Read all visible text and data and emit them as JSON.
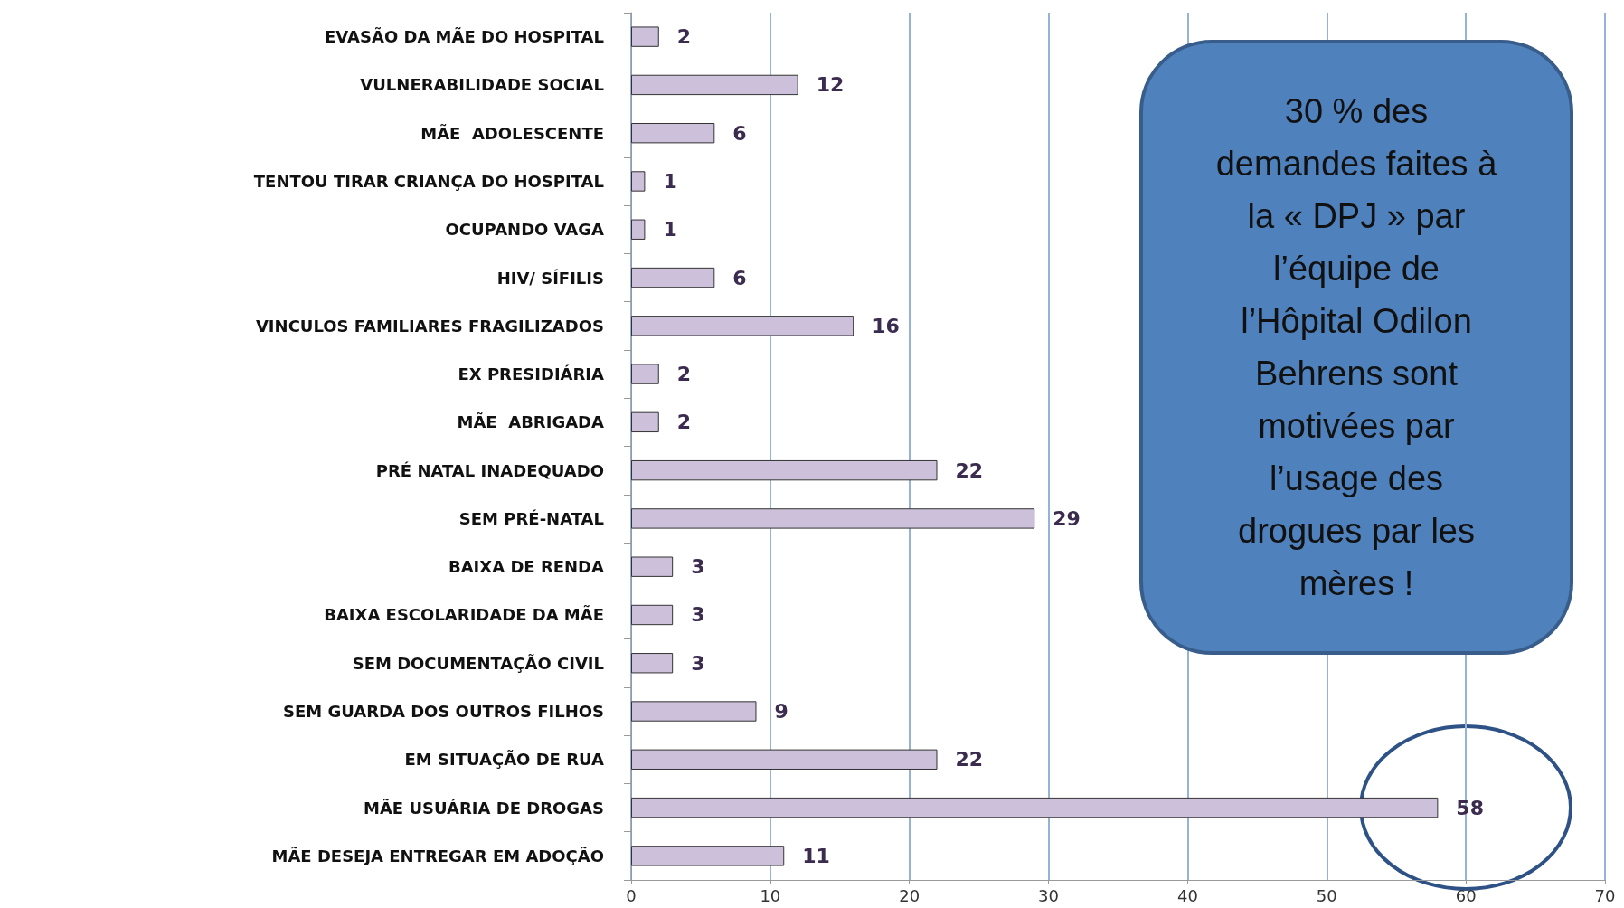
{
  "chart_data": {
    "type": "bar",
    "orientation": "horizontal",
    "categories": [
      "EVASÃO DA MÃE DO HOSPITAL",
      "VULNERABILIDADE SOCIAL",
      "MÃE  ADOLESCENTE",
      "TENTOU TIRAR CRIANÇA DO HOSPITAL",
      "OCUPANDO VAGA",
      "HIV/ SÍFILIS",
      "VINCULOS FAMILIARES FRAGILIZADOS",
      "EX PRESIDIÁRIA",
      "MÃE  ABRIGADA",
      "PRÉ NATAL INADEQUADO",
      "SEM PRÉ-NATAL",
      "BAIXA DE RENDA",
      "BAIXA ESCOLARIDADE DA MÃE",
      "SEM DOCUMENTAÇÃO CIVIL",
      "SEM GUARDA DOS OUTROS FILHOS",
      "EM SITUAÇÃO DE RUA",
      "MÃE USUÁRIA DE DROGAS",
      "MÃE DESEJA ENTREGAR EM ADOÇÃO"
    ],
    "values": [
      2,
      12,
      6,
      1,
      1,
      6,
      16,
      2,
      2,
      22,
      29,
      3,
      3,
      3,
      9,
      22,
      58,
      11
    ],
    "color": "#ccc0da",
    "xlim": [
      0,
      70
    ],
    "xticks": [
      0,
      10,
      20,
      30,
      40,
      50,
      60,
      70
    ],
    "grid": "x",
    "data_labels": true,
    "annotations": [
      "30 % des demandes faites à la « DPJ » par l’équipe de l’Hôpital Odilon Behrens sont motivées par l’usage des drogues par les mères !"
    ]
  }
}
